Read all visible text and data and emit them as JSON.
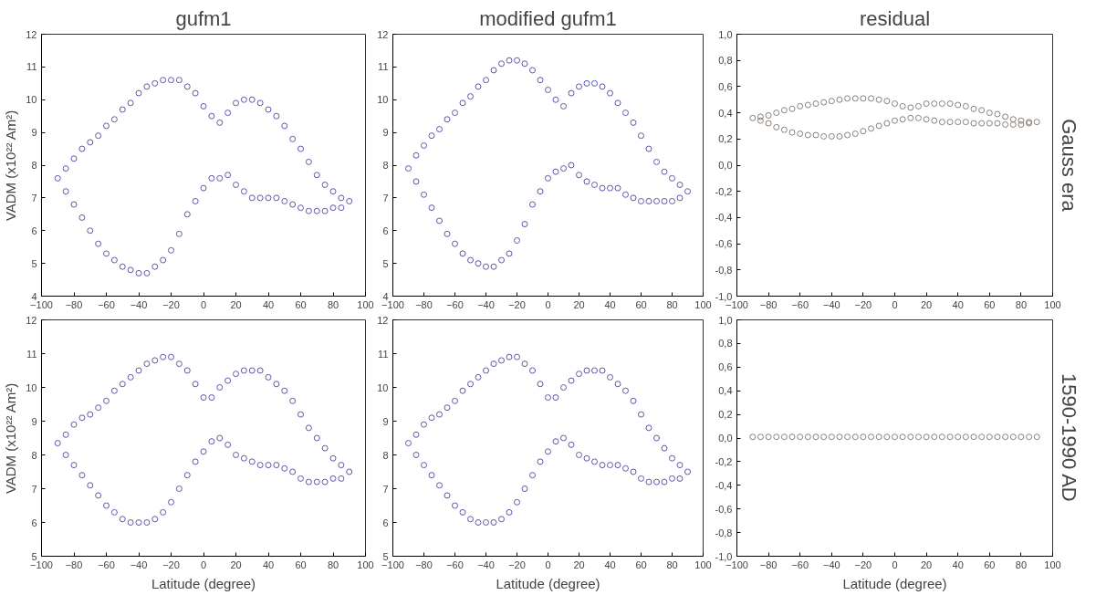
{
  "chart_data": [
    {
      "type": "scatter",
      "title": "gufm1",
      "ylabel": "VADM (x10²² Am²)",
      "color": "#5a5aa8",
      "marker": "circle",
      "grid": false,
      "xlim": [
        -100,
        100
      ],
      "xticks": [
        -100,
        -80,
        -60,
        -40,
        -20,
        0,
        20,
        40,
        60,
        80,
        100
      ],
      "ylim": [
        4,
        12
      ],
      "yticks": [
        4,
        5,
        6,
        7,
        8,
        9,
        10,
        11,
        12
      ],
      "x": [
        -90,
        -85,
        -85,
        -80,
        -80,
        -75,
        -75,
        -70,
        -70,
        -65,
        -65,
        -60,
        -60,
        -55,
        -55,
        -50,
        -50,
        -45,
        -45,
        -40,
        -40,
        -35,
        -35,
        -30,
        -30,
        -25,
        -25,
        -20,
        -20,
        -15,
        -15,
        -10,
        -10,
        -5,
        -5,
        0,
        0,
        5,
        5,
        10,
        10,
        15,
        15,
        20,
        20,
        25,
        25,
        30,
        30,
        35,
        35,
        40,
        40,
        45,
        45,
        50,
        50,
        55,
        55,
        60,
        60,
        65,
        65,
        70,
        70,
        75,
        75,
        80,
        80,
        85,
        85,
        90
      ],
      "values": [
        7.6,
        7.2,
        7.9,
        6.8,
        8.2,
        6.4,
        8.5,
        6.0,
        8.7,
        5.6,
        8.9,
        5.3,
        9.2,
        5.1,
        9.4,
        4.9,
        9.7,
        4.8,
        9.9,
        4.7,
        10.2,
        4.7,
        10.4,
        4.9,
        10.5,
        5.1,
        10.6,
        5.4,
        10.6,
        5.9,
        10.6,
        6.5,
        10.4,
        6.9,
        10.2,
        7.3,
        9.8,
        7.6,
        9.5,
        7.6,
        9.3,
        7.7,
        9.6,
        7.4,
        9.9,
        7.2,
        10.0,
        7.0,
        10.0,
        7.0,
        9.9,
        7.0,
        9.7,
        7.0,
        9.5,
        6.9,
        9.2,
        6.8,
        8.8,
        6.7,
        8.5,
        6.6,
        8.1,
        6.6,
        7.7,
        6.6,
        7.4,
        6.7,
        7.2,
        6.7,
        7.0,
        6.9
      ]
    },
    {
      "type": "scatter",
      "title": "modified gufm1",
      "color": "#5a5aa8",
      "marker": "circle",
      "grid": false,
      "xlim": [
        -100,
        100
      ],
      "xticks": [
        -100,
        -80,
        -60,
        -40,
        -20,
        0,
        20,
        40,
        60,
        80,
        100
      ],
      "ylim": [
        4,
        12
      ],
      "yticks": [
        4,
        5,
        6,
        7,
        8,
        9,
        10,
        11,
        12
      ],
      "x": [
        -90,
        -85,
        -85,
        -80,
        -80,
        -75,
        -75,
        -70,
        -70,
        -65,
        -65,
        -60,
        -60,
        -55,
        -55,
        -50,
        -50,
        -45,
        -45,
        -40,
        -40,
        -35,
        -35,
        -30,
        -30,
        -25,
        -25,
        -20,
        -20,
        -15,
        -15,
        -10,
        -10,
        -5,
        -5,
        0,
        0,
        5,
        5,
        10,
        10,
        15,
        15,
        20,
        20,
        25,
        25,
        30,
        30,
        35,
        35,
        40,
        40,
        45,
        45,
        50,
        50,
        55,
        55,
        60,
        60,
        65,
        65,
        70,
        70,
        75,
        75,
        80,
        80,
        85,
        85,
        90
      ],
      "values": [
        7.9,
        7.5,
        8.3,
        7.1,
        8.6,
        6.7,
        8.9,
        6.3,
        9.1,
        5.9,
        9.4,
        5.6,
        9.6,
        5.3,
        9.9,
        5.1,
        10.1,
        5.0,
        10.4,
        4.9,
        10.6,
        4.9,
        10.9,
        5.1,
        11.1,
        5.3,
        11.2,
        5.7,
        11.2,
        6.2,
        11.1,
        6.8,
        10.9,
        7.2,
        10.6,
        7.6,
        10.3,
        7.8,
        10.0,
        7.9,
        9.8,
        8.0,
        10.2,
        7.7,
        10.4,
        7.5,
        10.5,
        7.4,
        10.5,
        7.3,
        10.4,
        7.3,
        10.2,
        7.3,
        9.9,
        7.1,
        9.6,
        7.0,
        9.3,
        6.9,
        8.9,
        6.9,
        8.5,
        6.9,
        8.1,
        6.9,
        7.8,
        6.9,
        7.6,
        7.0,
        7.4,
        7.2
      ]
    },
    {
      "type": "scatter",
      "title": "residual",
      "annotations": [
        "Gauss era"
      ],
      "color": "#8a7f78",
      "marker": "circle",
      "grid": false,
      "xlim": [
        -100,
        100
      ],
      "xticks": [
        -100,
        -80,
        -60,
        -40,
        -20,
        0,
        20,
        40,
        60,
        80,
        100
      ],
      "ylim": [
        -1.0,
        1.0
      ],
      "yticks": [
        {
          "value": -1.0,
          "label": "-1,0"
        },
        {
          "value": -0.8,
          "label": "-0,8"
        },
        {
          "value": -0.6,
          "label": "-0,6"
        },
        {
          "value": -0.4,
          "label": "-0,4"
        },
        {
          "value": -0.2,
          "label": "-0,2"
        },
        {
          "value": 0.0,
          "label": "0,0"
        },
        {
          "value": 0.2,
          "label": "0,2"
        },
        {
          "value": 0.4,
          "label": "0,4"
        },
        {
          "value": 0.6,
          "label": "0,6"
        },
        {
          "value": 0.8,
          "label": "0,8"
        },
        {
          "value": 1.0,
          "label": "1,0"
        }
      ],
      "x": [
        -90,
        -85,
        -85,
        -80,
        -80,
        -75,
        -75,
        -70,
        -70,
        -65,
        -65,
        -60,
        -60,
        -55,
        -55,
        -50,
        -50,
        -45,
        -45,
        -40,
        -40,
        -35,
        -35,
        -30,
        -30,
        -25,
        -25,
        -20,
        -20,
        -15,
        -15,
        -10,
        -10,
        -5,
        -5,
        0,
        0,
        5,
        5,
        10,
        10,
        15,
        15,
        20,
        20,
        25,
        25,
        30,
        30,
        35,
        35,
        40,
        40,
        45,
        45,
        50,
        50,
        55,
        55,
        60,
        60,
        65,
        65,
        70,
        70,
        75,
        75,
        80,
        80,
        85,
        85,
        90
      ],
      "values": [
        0.36,
        0.34,
        0.37,
        0.32,
        0.38,
        0.29,
        0.4,
        0.27,
        0.42,
        0.25,
        0.43,
        0.24,
        0.45,
        0.23,
        0.46,
        0.23,
        0.47,
        0.22,
        0.48,
        0.22,
        0.49,
        0.22,
        0.5,
        0.23,
        0.51,
        0.24,
        0.51,
        0.26,
        0.51,
        0.28,
        0.51,
        0.3,
        0.5,
        0.32,
        0.49,
        0.34,
        0.47,
        0.35,
        0.45,
        0.36,
        0.44,
        0.36,
        0.45,
        0.35,
        0.47,
        0.34,
        0.47,
        0.33,
        0.47,
        0.33,
        0.47,
        0.33,
        0.46,
        0.33,
        0.45,
        0.32,
        0.43,
        0.32,
        0.42,
        0.32,
        0.4,
        0.32,
        0.39,
        0.31,
        0.37,
        0.31,
        0.35,
        0.31,
        0.34,
        0.32,
        0.33,
        0.33
      ]
    },
    {
      "type": "scatter",
      "ylabel": "VADM (x10²² Am²)",
      "xlabel": "Latitude (degree)",
      "color": "#5a5aa8",
      "marker": "circle",
      "grid": false,
      "xlim": [
        -100,
        100
      ],
      "xticks": [
        -100,
        -80,
        -60,
        -40,
        -20,
        0,
        20,
        40,
        60,
        80,
        100
      ],
      "ylim": [
        5,
        12
      ],
      "yticks": [
        5,
        6,
        7,
        8,
        9,
        10,
        11,
        12
      ],
      "x": [
        -90,
        -85,
        -85,
        -80,
        -80,
        -75,
        -75,
        -70,
        -70,
        -65,
        -65,
        -60,
        -60,
        -55,
        -55,
        -50,
        -50,
        -45,
        -45,
        -40,
        -40,
        -35,
        -35,
        -30,
        -30,
        -25,
        -25,
        -20,
        -20,
        -15,
        -15,
        -10,
        -10,
        -5,
        -5,
        0,
        0,
        5,
        5,
        10,
        10,
        15,
        15,
        20,
        20,
        25,
        25,
        30,
        30,
        35,
        35,
        40,
        40,
        45,
        45,
        50,
        50,
        55,
        55,
        60,
        60,
        65,
        65,
        70,
        70,
        75,
        75,
        80,
        80,
        85,
        85,
        90
      ],
      "values": [
        8.35,
        8.0,
        8.6,
        7.7,
        8.9,
        7.4,
        9.1,
        7.1,
        9.2,
        6.8,
        9.4,
        6.5,
        9.6,
        6.3,
        9.9,
        6.1,
        10.1,
        6.0,
        10.3,
        6.0,
        10.5,
        6.0,
        10.7,
        6.1,
        10.8,
        6.3,
        10.9,
        6.6,
        10.9,
        7.0,
        10.7,
        7.4,
        10.5,
        7.8,
        10.1,
        8.1,
        9.7,
        8.4,
        9.7,
        8.5,
        10.0,
        8.3,
        10.2,
        8.0,
        10.4,
        7.9,
        10.5,
        7.8,
        10.5,
        7.7,
        10.5,
        7.7,
        10.3,
        7.7,
        10.1,
        7.6,
        9.9,
        7.5,
        9.6,
        7.3,
        9.2,
        7.2,
        8.8,
        7.2,
        8.5,
        7.2,
        8.2,
        7.3,
        7.9,
        7.3,
        7.7,
        7.5
      ]
    },
    {
      "type": "scatter",
      "xlabel": "Latitude (degree)",
      "color": "#5a5aa8",
      "marker": "circle",
      "grid": false,
      "xlim": [
        -100,
        100
      ],
      "xticks": [
        -100,
        -80,
        -60,
        -40,
        -20,
        0,
        20,
        40,
        60,
        80,
        100
      ],
      "ylim": [
        5,
        12
      ],
      "yticks": [
        5,
        6,
        7,
        8,
        9,
        10,
        11,
        12
      ],
      "x": [
        -90,
        -85,
        -85,
        -80,
        -80,
        -75,
        -75,
        -70,
        -70,
        -65,
        -65,
        -60,
        -60,
        -55,
        -55,
        -50,
        -50,
        -45,
        -45,
        -40,
        -40,
        -35,
        -35,
        -30,
        -30,
        -25,
        -25,
        -20,
        -20,
        -15,
        -15,
        -10,
        -10,
        -5,
        -5,
        0,
        0,
        5,
        5,
        10,
        10,
        15,
        15,
        20,
        20,
        25,
        25,
        30,
        30,
        35,
        35,
        40,
        40,
        45,
        45,
        50,
        50,
        55,
        55,
        60,
        60,
        65,
        65,
        70,
        70,
        75,
        75,
        80,
        80,
        85,
        85,
        90
      ],
      "values": [
        8.35,
        8.0,
        8.6,
        7.7,
        8.9,
        7.4,
        9.1,
        7.1,
        9.2,
        6.8,
        9.4,
        6.5,
        9.6,
        6.3,
        9.9,
        6.1,
        10.1,
        6.0,
        10.3,
        6.0,
        10.5,
        6.0,
        10.7,
        6.1,
        10.8,
        6.3,
        10.9,
        6.6,
        10.9,
        7.0,
        10.7,
        7.4,
        10.5,
        7.8,
        10.1,
        8.1,
        9.7,
        8.4,
        9.7,
        8.5,
        10.0,
        8.3,
        10.2,
        8.0,
        10.4,
        7.9,
        10.5,
        7.8,
        10.5,
        7.7,
        10.5,
        7.7,
        10.3,
        7.7,
        10.1,
        7.6,
        9.9,
        7.5,
        9.6,
        7.3,
        9.2,
        7.2,
        8.8,
        7.2,
        8.5,
        7.2,
        8.2,
        7.3,
        7.9,
        7.3,
        7.7,
        7.5
      ]
    },
    {
      "type": "scatter",
      "xlabel": "Latitude (degree)",
      "annotations": [
        "1590-1990 AD"
      ],
      "color": "#8a7f78",
      "marker": "circle",
      "grid": false,
      "xlim": [
        -100,
        100
      ],
      "xticks": [
        -100,
        -80,
        -60,
        -40,
        -20,
        0,
        20,
        40,
        60,
        80,
        100
      ],
      "ylim": [
        -1.0,
        1.0
      ],
      "yticks": [
        {
          "value": -1.0,
          "label": "-1,0"
        },
        {
          "value": -0.8,
          "label": "-0,8"
        },
        {
          "value": -0.6,
          "label": "-0,6"
        },
        {
          "value": -0.4,
          "label": "-0,4"
        },
        {
          "value": -0.2,
          "label": "-0,2"
        },
        {
          "value": 0.0,
          "label": "0,0"
        },
        {
          "value": 0.2,
          "label": "0,2"
        },
        {
          "value": 0.4,
          "label": "0,4"
        },
        {
          "value": 0.6,
          "label": "0,6"
        },
        {
          "value": 0.8,
          "label": "0,8"
        },
        {
          "value": 1.0,
          "label": "1,0"
        }
      ],
      "x": [
        -90,
        -85,
        -80,
        -75,
        -70,
        -65,
        -60,
        -55,
        -50,
        -45,
        -40,
        -35,
        -30,
        -25,
        -20,
        -15,
        -10,
        -5,
        0,
        5,
        10,
        15,
        20,
        25,
        30,
        35,
        40,
        45,
        50,
        55,
        60,
        65,
        70,
        75,
        80,
        85,
        90
      ],
      "values": [
        0.01,
        0.01,
        0.01,
        0.01,
        0.01,
        0.01,
        0.01,
        0.01,
        0.01,
        0.01,
        0.01,
        0.01,
        0.01,
        0.01,
        0.01,
        0.01,
        0.01,
        0.01,
        0.01,
        0.01,
        0.01,
        0.01,
        0.01,
        0.01,
        0.01,
        0.01,
        0.01,
        0.01,
        0.01,
        0.01,
        0.01,
        0.01,
        0.01,
        0.01,
        0.01,
        0.01,
        0.01
      ]
    }
  ]
}
